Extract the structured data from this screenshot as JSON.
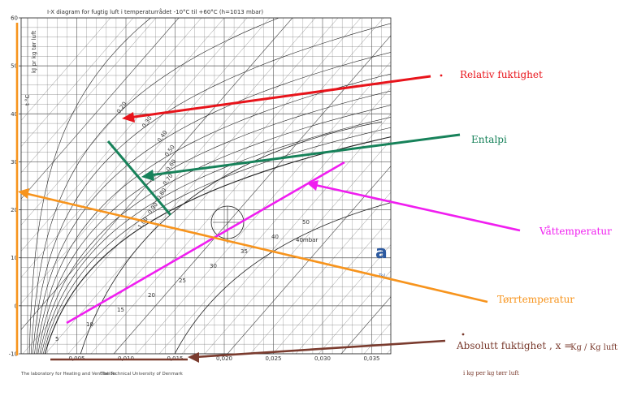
{
  "chart": {
    "title": "I-X diagram for fugtig luft i temperaturrådet -10°C til +60°C (h=1013 mbar)",
    "y_axis_unit": "t °C",
    "enthalpy_axis_label": "kJ pr kg tør luft",
    "y_ticks": [
      "60",
      "50",
      "40",
      "30",
      "20",
      "10",
      "0",
      "-10"
    ],
    "x_ticks": [
      "0,005",
      "0,010",
      "0,015",
      "0,020",
      "0,025",
      "0,030",
      "0,035"
    ],
    "rh_labels": [
      "0,20",
      "0,30",
      "0,40",
      "0,50",
      "0,60",
      "0,70",
      "0,80",
      "0,90",
      "1,00"
    ],
    "enthalpy_labels": [
      "5",
      "10",
      "15",
      "20",
      "25",
      "30",
      "35",
      "40",
      "50"
    ],
    "vapour_pressure_label": "40mbar",
    "footer_left": "The laboratory for Heating and Ventilation",
    "footer_right": "The Technical University of Denmark"
  },
  "annotations": {
    "relativ_fuktighet": "Relativ fuktighet",
    "entalpi": "Entalpi",
    "vattemperatur": "Våttemperatur",
    "torrtemperatur": "Tørrtemperatur",
    "absolutt_fuktighet": "Absolutt fuktighet , x =",
    "unit": "Kg / Kg luft",
    "unit_note": "i kg per kg tørr luft"
  },
  "colors": {
    "relativ": "#e8141b",
    "entalpi": "#17825a",
    "vatt": "#f01ef0",
    "torr": "#f7941d",
    "absolutt": "#7a3b2e"
  }
}
